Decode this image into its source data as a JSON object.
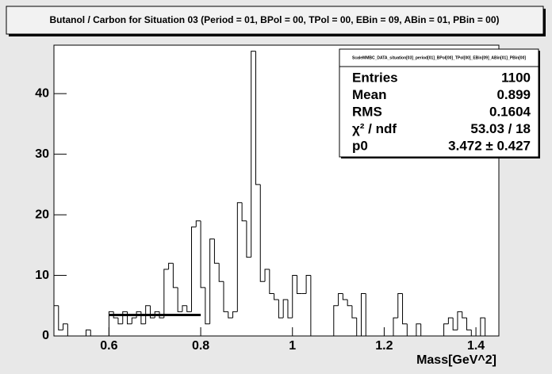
{
  "chart_data": {
    "type": "histogram",
    "title": "Butanol / Carbon for Situation 03 (Period = 01, BPol = 00, TPol = 00, EBin = 09, ABin = 01, PBin = 00)",
    "x_label": "Mass[GeV^2]",
    "bins": [
      0.48,
      0.49,
      0.5,
      0.51,
      0.52,
      0.53,
      0.54,
      0.55,
      0.56,
      0.57,
      0.58,
      0.59,
      0.6,
      0.61,
      0.62,
      0.63,
      0.64,
      0.65,
      0.66,
      0.67,
      0.68,
      0.69,
      0.7,
      0.71,
      0.72,
      0.73,
      0.74,
      0.75,
      0.76,
      0.77,
      0.78,
      0.79,
      0.8,
      0.81,
      0.82,
      0.83,
      0.84,
      0.85,
      0.86,
      0.87,
      0.88,
      0.89,
      0.9,
      0.91,
      0.92,
      0.93,
      0.94,
      0.95,
      0.96,
      0.97,
      0.98,
      0.99,
      1.0,
      1.01,
      1.02,
      1.03,
      1.04,
      1.05,
      1.06,
      1.07,
      1.08,
      1.09,
      1.1,
      1.11,
      1.12,
      1.13,
      1.14,
      1.15,
      1.16,
      1.17,
      1.18,
      1.19,
      1.2,
      1.21,
      1.22,
      1.23,
      1.24,
      1.25,
      1.26,
      1.27,
      1.28,
      1.29,
      1.3,
      1.31,
      1.32,
      1.33,
      1.34,
      1.35,
      1.36,
      1.37,
      1.38,
      1.39,
      1.4,
      1.41,
      1.42,
      1.43,
      1.44,
      1.45
    ],
    "values": [
      5,
      1,
      2,
      0,
      0,
      0,
      0,
      1,
      0,
      0,
      0,
      0,
      4,
      3,
      2,
      4,
      2,
      3,
      4,
      2,
      5,
      3,
      4,
      3,
      11,
      12,
      8,
      4,
      5,
      4,
      18,
      19,
      8,
      2,
      16,
      12,
      9,
      4,
      3,
      4,
      22,
      19,
      13,
      47,
      25,
      9,
      11,
      7,
      6,
      3,
      6,
      3,
      10,
      7,
      7,
      10,
      0,
      0,
      0,
      0,
      0,
      5,
      7,
      6,
      5,
      3,
      0,
      7,
      0,
      0,
      0,
      0,
      0,
      0,
      3,
      7,
      2,
      0,
      0,
      2,
      0,
      0,
      0,
      0,
      0,
      2,
      3,
      1,
      4,
      3,
      1,
      0,
      0,
      3,
      0,
      0,
      0
    ],
    "color": "#ffffff",
    "line_color": "#000000",
    "xlim": [
      0.48,
      1.45
    ],
    "ylim": [
      0,
      48
    ],
    "xticks": [
      0.6,
      0.8,
      1,
      1.2,
      1.4
    ],
    "yticks": [
      0,
      10,
      20,
      30,
      40
    ],
    "fit": {
      "xrange": [
        0.6,
        0.8
      ],
      "value": 3.472
    },
    "stats": {
      "name": "ScaleMMBC_DATA_situation[03]_period[01]_BPol[00]_TPol[00]_EBin[09]_ABin[01]_PBin[00]",
      "rows": [
        [
          "Entries",
          "1100"
        ],
        [
          "Mean",
          "0.899"
        ],
        [
          "RMS",
          "0.1604"
        ],
        [
          "χ² / ndf",
          "53.03 / 18"
        ],
        [
          "p0",
          "3.472 ± 0.427"
        ]
      ]
    }
  }
}
